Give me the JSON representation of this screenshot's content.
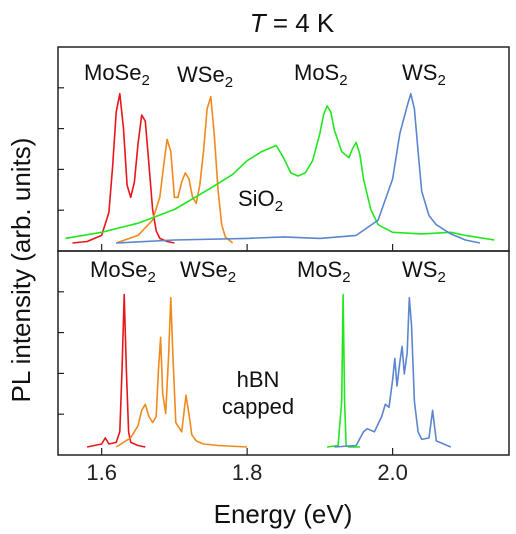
{
  "chart_data": [
    {
      "type": "line",
      "panel": "top",
      "title": "T = 4 K",
      "title_var": "T",
      "title_rest": " = 4 K",
      "xlabel": "Energy (eV)",
      "ylabel": "PL intensity (arb. units)",
      "xlim": [
        1.54,
        2.16
      ],
      "ylim": [
        0,
        1.05
      ],
      "annotation": "SiO",
      "annotation_sub": "2",
      "series": [
        {
          "label": "MoSe",
          "label_sub": "2",
          "color": "#e8161b",
          "x": [
            1.56,
            1.58,
            1.6,
            1.61,
            1.615,
            1.62,
            1.625,
            1.63,
            1.635,
            1.64,
            1.645,
            1.65,
            1.655,
            1.66,
            1.665,
            1.67,
            1.675,
            1.68,
            1.69,
            1.7
          ],
          "y": [
            0.0,
            0.01,
            0.05,
            0.2,
            0.5,
            0.86,
            0.98,
            0.75,
            0.38,
            0.3,
            0.4,
            0.65,
            0.84,
            0.8,
            0.52,
            0.22,
            0.08,
            0.03,
            0.01,
            0.0
          ]
        },
        {
          "label": "WSe",
          "label_sub": "2",
          "color": "#f08a1c",
          "x": [
            1.62,
            1.65,
            1.67,
            1.68,
            1.685,
            1.69,
            1.695,
            1.7,
            1.705,
            1.71,
            1.715,
            1.72,
            1.725,
            1.73,
            1.735,
            1.74,
            1.745,
            1.75,
            1.755,
            1.76,
            1.765,
            1.77,
            1.78
          ],
          "y": [
            0.0,
            0.05,
            0.15,
            0.3,
            0.5,
            0.68,
            0.6,
            0.3,
            0.3,
            0.4,
            0.46,
            0.42,
            0.3,
            0.26,
            0.38,
            0.6,
            0.88,
            0.96,
            0.7,
            0.35,
            0.12,
            0.04,
            0.0
          ]
        },
        {
          "label": "",
          "label_sub": "",
          "color": "#22e61e",
          "x": [
            1.55,
            1.6,
            1.65,
            1.7,
            1.75,
            1.78,
            1.8,
            1.82,
            1.84,
            1.85,
            1.86,
            1.87,
            1.88,
            1.89,
            1.9,
            1.905,
            1.91,
            1.915,
            1.92,
            1.93,
            1.94,
            1.945,
            1.95,
            1.955,
            1.96,
            1.97,
            1.98,
            2.0,
            2.04,
            2.08,
            2.1,
            2.14
          ],
          "y": [
            0.03,
            0.07,
            0.13,
            0.22,
            0.36,
            0.45,
            0.54,
            0.6,
            0.64,
            0.56,
            0.46,
            0.44,
            0.46,
            0.54,
            0.72,
            0.84,
            0.9,
            0.86,
            0.74,
            0.6,
            0.56,
            0.62,
            0.66,
            0.58,
            0.42,
            0.22,
            0.12,
            0.07,
            0.06,
            0.07,
            0.05,
            0.02
          ]
        },
        {
          "label": "",
          "label_sub": "",
          "color": "#5b86cf",
          "x": [
            1.62,
            1.7,
            1.8,
            1.85,
            1.9,
            1.95,
            1.98,
            2.0,
            2.01,
            2.02,
            2.025,
            2.03,
            2.035,
            2.04,
            2.05,
            2.06,
            2.07,
            2.08,
            2.1,
            2.12
          ],
          "y": [
            0.0,
            0.02,
            0.03,
            0.04,
            0.03,
            0.05,
            0.15,
            0.42,
            0.72,
            0.9,
            0.98,
            0.88,
            0.6,
            0.34,
            0.18,
            0.12,
            0.09,
            0.06,
            0.02,
            0.0
          ]
        }
      ]
    },
    {
      "type": "line",
      "panel": "bottom",
      "xlabel": "Energy (eV)",
      "xlim": [
        1.54,
        2.16
      ],
      "ylim": [
        0,
        1.05
      ],
      "x_ticks": [
        "1.6",
        "1.8",
        "2.0"
      ],
      "x_tick_values": [
        1.6,
        1.8,
        2.0
      ],
      "annotation_line1": "hBN",
      "annotation_line2": "capped",
      "series": [
        {
          "label": "MoSe",
          "label_sub": "2",
          "color": "#e8161b",
          "x": [
            1.58,
            1.6,
            1.605,
            1.61,
            1.62,
            1.625,
            1.628,
            1.631,
            1.634,
            1.637,
            1.64,
            1.65,
            1.66
          ],
          "y": [
            0.0,
            0.02,
            0.06,
            0.02,
            0.03,
            0.1,
            0.5,
            1.0,
            0.5,
            0.1,
            0.03,
            0.01,
            0.0
          ]
        },
        {
          "label": "WSe",
          "label_sub": "2",
          "color": "#f08a1c",
          "x": [
            1.62,
            1.64,
            1.65,
            1.655,
            1.66,
            1.665,
            1.67,
            1.675,
            1.678,
            1.681,
            1.684,
            1.688,
            1.692,
            1.695,
            1.698,
            1.702,
            1.71,
            1.716,
            1.72,
            1.724,
            1.73,
            1.74,
            1.76,
            1.8
          ],
          "y": [
            0.0,
            0.06,
            0.14,
            0.24,
            0.28,
            0.2,
            0.16,
            0.2,
            0.5,
            0.72,
            0.35,
            0.22,
            0.6,
            0.98,
            0.6,
            0.16,
            0.1,
            0.34,
            0.22,
            0.08,
            0.04,
            0.02,
            0.01,
            0.0
          ]
        },
        {
          "label": "MoS",
          "label_sub": "2",
          "color": "#22e61e",
          "x": [
            1.91,
            1.925,
            1.93,
            1.932,
            1.934,
            1.936,
            1.94,
            1.955
          ],
          "y": [
            0.0,
            0.01,
            0.3,
            1.0,
            0.3,
            0.01,
            0.0,
            0.0
          ]
        },
        {
          "label": "WS",
          "label_sub": "2",
          "color": "#5b86cf",
          "x": [
            1.92,
            1.95,
            1.96,
            1.965,
            1.975,
            1.985,
            1.99,
            1.995,
            2.0,
            2.003,
            2.006,
            2.01,
            2.013,
            2.016,
            2.02,
            2.023,
            2.026,
            2.03,
            2.035,
            2.04,
            2.05,
            2.055,
            2.06,
            2.08
          ],
          "y": [
            0.0,
            0.01,
            0.1,
            0.12,
            0.1,
            0.2,
            0.28,
            0.26,
            0.44,
            0.58,
            0.4,
            0.56,
            0.66,
            0.48,
            0.62,
            0.98,
            0.8,
            0.3,
            0.1,
            0.05,
            0.06,
            0.24,
            0.04,
            0.0
          ]
        }
      ]
    }
  ],
  "top_labels": {
    "wse2_right": {
      "label": "WS",
      "label_sub": "2"
    },
    "mos2_right": {
      "label": "MoS",
      "label_sub": "2"
    }
  }
}
